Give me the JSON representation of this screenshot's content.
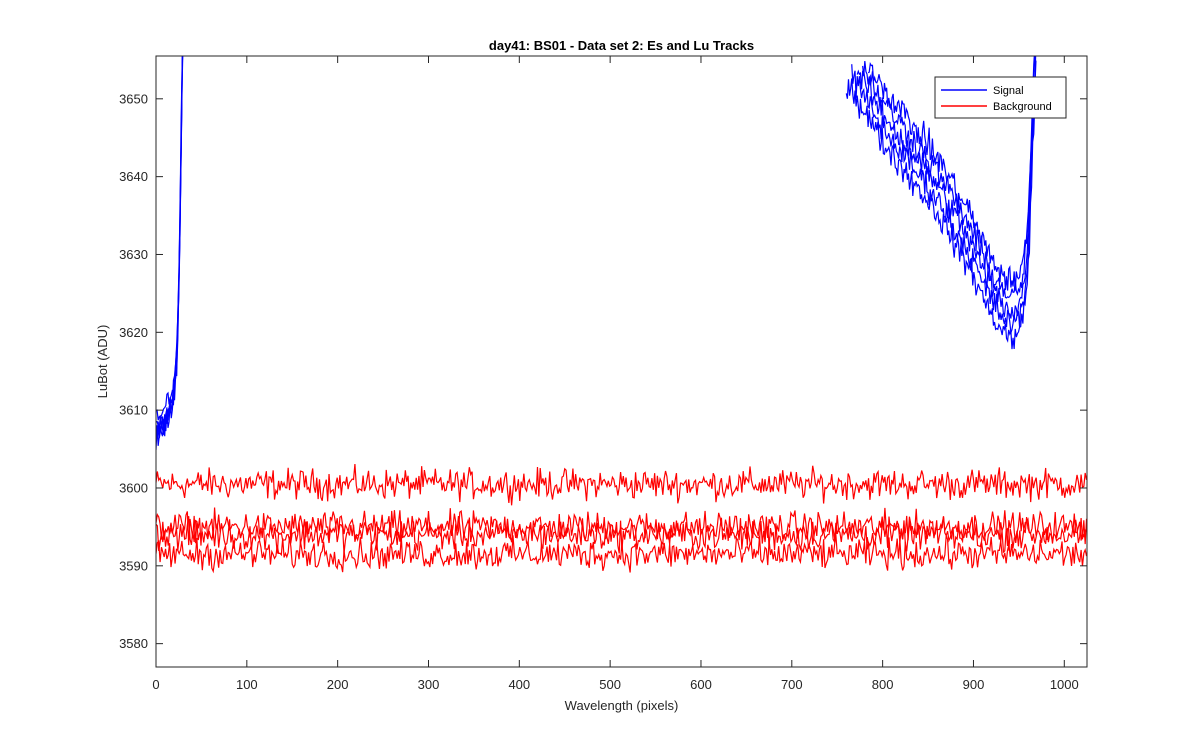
{
  "chart_data": {
    "type": "line",
    "title": "day41: BS01 - Data set 2: Es and Lu Tracks",
    "xlabel": "Wavelength (pixels)",
    "ylabel": "LuBot (ADU)",
    "xlim": [
      0,
      1025
    ],
    "ylim": [
      3577,
      3655.5
    ],
    "xticks": [
      0,
      100,
      200,
      300,
      400,
      500,
      600,
      700,
      800,
      900,
      1000
    ],
    "yticks": [
      3580,
      3590,
      3600,
      3610,
      3620,
      3630,
      3640,
      3650
    ],
    "grid": false,
    "legend": {
      "position": "top-right",
      "entries": [
        "Signal",
        "Background"
      ]
    },
    "series": [
      {
        "name": "Signal",
        "color": "#0000ff",
        "traces": 5,
        "segments": [
          {
            "x": [
              0,
              5,
              10,
              15,
              20,
              23,
              25,
              27,
              28,
              29,
              30
            ],
            "y": [
              3607,
              3608,
              3609,
              3610,
              3613,
              3617,
              3625,
              3638,
              3648,
              3655,
              3660
            ]
          },
          {
            "x": [
              760,
              780,
              800,
              820,
              840,
              860,
              880,
              900,
              910,
              920,
              930,
              940,
              950,
              955,
              960,
              963,
              967,
              970
            ],
            "y": [
              3656,
              3652,
              3648,
              3645,
              3642,
              3639,
              3635,
              3631,
              3628,
              3626,
              3624,
              3623,
              3623,
              3626,
              3631,
              3640,
              3652,
              3660
            ]
          }
        ]
      },
      {
        "name": "Background",
        "color": "#ff0000",
        "traces": 4,
        "x": [
          0,
          1025
        ],
        "levels": [
          3600.5,
          3595,
          3594,
          3591.5
        ],
        "noise_amplitude": 1.6
      }
    ]
  }
}
